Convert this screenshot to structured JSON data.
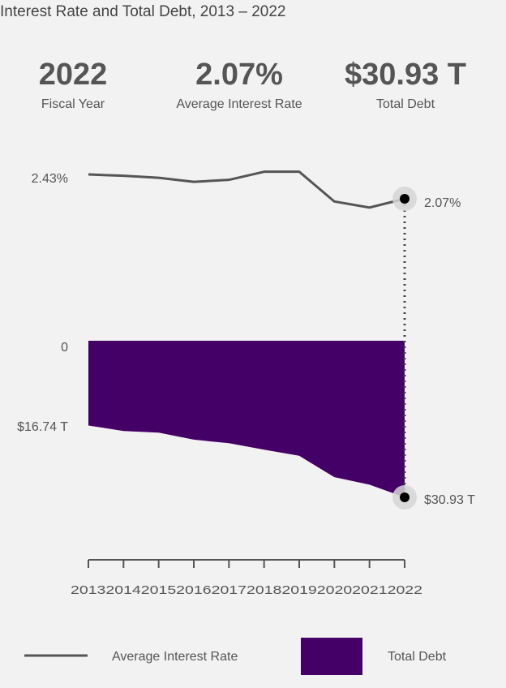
{
  "title": "Interest Rate and Total Debt, 2013 – 2022",
  "kpis": {
    "year": {
      "value": "2022",
      "label": "Fiscal Year"
    },
    "rate": {
      "value": "2.07%",
      "label": "Average Interest Rate"
    },
    "debt": {
      "value": "$30.93 T",
      "label": "Total Debt"
    }
  },
  "labels": {
    "rate_top": "2.43%",
    "rate_end": "2.07%",
    "debt_zero": "0",
    "debt_start": "$16.74 T",
    "debt_end": "$30.93 T"
  },
  "legend": {
    "rate": "Average Interest Rate",
    "debt": "Total Debt"
  },
  "colors": {
    "line": "#555555",
    "area": "#450068",
    "marker": "#000000",
    "halo": "#d6d6d6"
  },
  "chart_data": {
    "type": "line",
    "categories": [
      "2013",
      "2014",
      "2015",
      "2016",
      "2017",
      "2018",
      "2019",
      "2020",
      "2021",
      "2022"
    ],
    "series": [
      {
        "name": "Average Interest Rate",
        "values": [
          2.43,
          2.41,
          2.38,
          2.32,
          2.35,
          2.47,
          2.47,
          2.03,
          1.94,
          2.07
        ]
      },
      {
        "name": "Total Debt",
        "values": [
          16.74,
          17.82,
          18.15,
          19.54,
          20.24,
          21.52,
          22.72,
          26.95,
          28.43,
          30.93
        ]
      }
    ]
  }
}
